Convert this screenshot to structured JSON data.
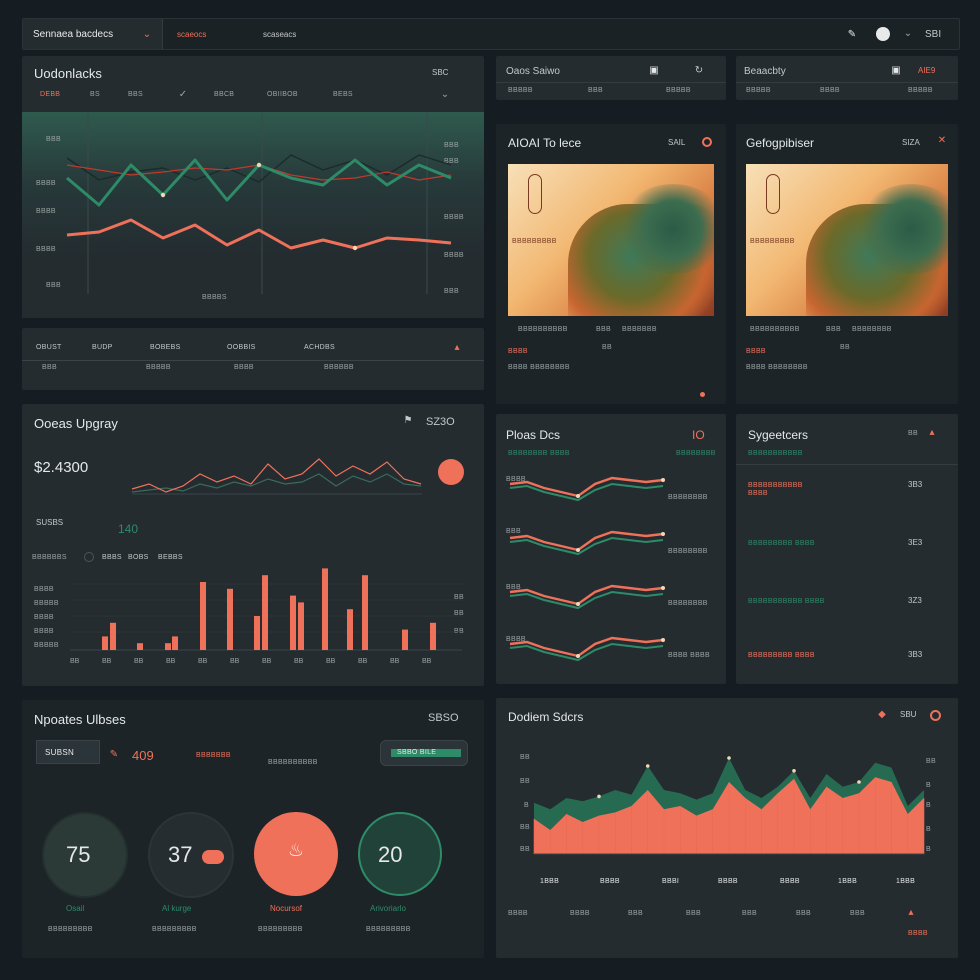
{
  "topbar": {
    "dropdown_label": "Sennaea bacdecs",
    "tab1": "scaeocs",
    "tab2": "scaseacs",
    "user_label": "SBI"
  },
  "updates": {
    "title": "Uodonlacks",
    "value_label": "SBC",
    "tabs": [
      "DEBB",
      "BS",
      "BBS",
      "BBCB",
      "OBIIBOB",
      "BEBS"
    ],
    "y_ticks": [
      "BBB",
      "BBBB",
      "BBBB",
      "BBBB",
      "BBB"
    ],
    "right_ticks": [
      "BBB",
      "BBB",
      "BBBB",
      "BBBB",
      "BBB"
    ],
    "x_tick": "BBBBS",
    "green_series": [
      178,
      205,
      165,
      195,
      160,
      200,
      165,
      178,
      185,
      160,
      185,
      165,
      178
    ],
    "dark_series": [
      158,
      180,
      172,
      168,
      180,
      168,
      182,
      155,
      170,
      160,
      175,
      155,
      165
    ],
    "red_series": [
      165,
      170,
      175,
      172,
      168,
      170,
      165,
      175,
      180,
      178,
      172,
      180,
      175
    ],
    "coral_series": [
      235,
      232,
      220,
      238,
      225,
      245,
      230,
      248,
      240,
      248,
      238,
      240,
      243
    ]
  },
  "updates_table": {
    "headers": [
      "OBUST",
      "BUDP",
      "BOBEBS",
      "OOBBIS",
      "ACHDBS"
    ],
    "row": [
      "BBB",
      "BBBBB",
      "BBBB",
      "BBBBBB"
    ]
  },
  "ops": {
    "title": "Ooeas Upgray",
    "value_label": "SZ3O",
    "big_value": "$2.4300",
    "sub_label": "SUSBS",
    "sub_value": "140",
    "filters": [
      "BBBBBBS",
      "BBBS",
      "BOBS",
      "BEBBS"
    ],
    "y_ticks": [
      "BBBB",
      "BBBBB",
      "BBBB",
      "BBBB",
      "BBBBB"
    ],
    "bars": [
      2,
      4,
      1,
      1,
      2,
      10,
      9,
      5,
      11,
      8,
      7,
      12,
      6,
      11,
      3,
      4
    ],
    "x_ticks": [
      "BB",
      "BB",
      "BB",
      "BB",
      "BB",
      "BB",
      "BB",
      "BB",
      "BB",
      "BB",
      "BB",
      "BB"
    ]
  },
  "news_updates": {
    "title": "Npoates Ulbses",
    "value_label": "SBSO",
    "pill_label": "SUBSN",
    "pill_value": "409",
    "mid_label": "BBBBBBB",
    "right_label": "SBBO BILE",
    "gauges": [
      {
        "value": "75",
        "label": "Osail",
        "sub": "BBBBBBBBB"
      },
      {
        "value": "37",
        "label": "Al kurge",
        "sub": "BBBBBBBBB"
      },
      {
        "value": "",
        "label": "Nocursof",
        "sub": "BBBBBBBBB"
      },
      {
        "value": "20",
        "label": "Arivoriarlo",
        "sub": "BBBBBBBBB"
      }
    ]
  },
  "small_card_1": {
    "title": "Oaos Saiwo",
    "cols": [
      "BBBBB",
      "BBB",
      "BBBBB"
    ]
  },
  "small_card_2": {
    "title": "Beaacbty",
    "value_label": "AIE9",
    "cols": [
      "BBBBB",
      "BBBB",
      "BBBBB"
    ]
  },
  "image_card_1": {
    "title": "AIOAI To lece",
    "value_label": "SAIL",
    "caption": "BBBBBBBBB",
    "row": "BBBBBBBBBB"
  },
  "image_card_2": {
    "title": "Gefogpibiser",
    "value_label": "SIZA",
    "caption": "BBBBBBBBB",
    "row": "BBBBBBBBBB"
  },
  "flows": {
    "title": "Ploas Dcs",
    "value_label": "IO",
    "labels": [
      "BBBB",
      "BBB",
      "BBB",
      "BBBB"
    ],
    "right_labels": [
      "BBBBBBBB",
      "BBBBBBBB",
      "BBBBBBBB",
      "BBBB BBBB"
    ]
  },
  "segments": {
    "title": "Sygeetcers",
    "subtitle": "BBBBBBBBBBB",
    "rows": [
      {
        "label": "BBBBBBBBBBB",
        "value": "3B3"
      },
      {
        "label": "BBBBBBBBB BBBB",
        "value": "3E3"
      },
      {
        "label": "BBBBBBBBBBB BBBB",
        "value": "3Z3"
      },
      {
        "label": "BBBBBBBBB BBBB",
        "value": "3B3"
      }
    ]
  },
  "deck_stats": {
    "title": "Dodiem Sdcrs",
    "value_label": "SBU",
    "y_ticks": [
      "BB",
      "BB",
      "B",
      "BB",
      "BB"
    ],
    "right_ticks": [
      "BB",
      "B",
      "B",
      "B",
      "B"
    ],
    "x_ticks": [
      "1BBB",
      "BBBB",
      "BBBI",
      "BBBB",
      "BBBB",
      "1BBB",
      "1BBB"
    ],
    "footer": [
      "BBBB",
      "BBBB",
      "BBB",
      "BBB",
      "BBB",
      "BBB",
      "BBB",
      "BBBB"
    ],
    "green_series": [
      52,
      48,
      55,
      53,
      56,
      60,
      57,
      75,
      60,
      58,
      54,
      58,
      80,
      60,
      55,
      62,
      72,
      55,
      70,
      62,
      65,
      77,
      74,
      50,
      60
    ],
    "coral_series": [
      42,
      35,
      45,
      40,
      44,
      46,
      50,
      60,
      48,
      50,
      44,
      48,
      65,
      55,
      48,
      58,
      67,
      48,
      62,
      55,
      58,
      68,
      65,
      45,
      55
    ]
  },
  "colors": {
    "coral": "#f0715a",
    "green": "#2e8b68",
    "panel": "#242c30",
    "bg": "#161d22"
  }
}
